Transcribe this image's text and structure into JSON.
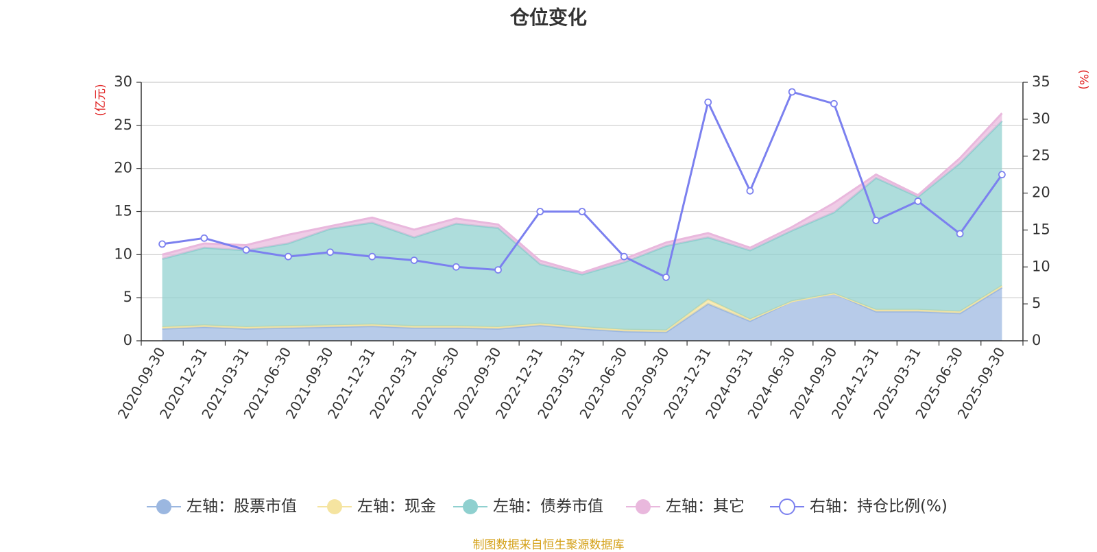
{
  "chart_data": {
    "type": "area",
    "title": "仓位变化",
    "y_left_label": "(亿元)",
    "y_right_label": "(%)",
    "y_left_lim": [
      0,
      30
    ],
    "y_right_lim": [
      0,
      35
    ],
    "y_left_ticks": [
      "0",
      "5",
      "10",
      "15",
      "20",
      "25",
      "30"
    ],
    "y_right_ticks": [
      "0",
      "5",
      "10",
      "15",
      "20",
      "25",
      "30",
      "35"
    ],
    "categories": [
      "2020-09-30",
      "2020-12-31",
      "2021-03-31",
      "2021-06-30",
      "2021-09-30",
      "2021-12-31",
      "2022-03-31",
      "2022-06-30",
      "2022-09-30",
      "2022-12-31",
      "2023-03-31",
      "2023-06-30",
      "2023-09-30",
      "2023-12-31",
      "2024-03-31",
      "2024-06-30",
      "2024-09-30",
      "2024-12-31",
      "2025-03-31",
      "2025-06-30",
      "2025-09-30"
    ],
    "stacked_series": [
      {
        "name": "左轴：股票市值",
        "color": "#9bb7e0",
        "values": [
          1.4,
          1.6,
          1.4,
          1.5,
          1.6,
          1.7,
          1.5,
          1.5,
          1.4,
          1.8,
          1.4,
          1.1,
          1.0,
          4.3,
          2.3,
          4.6,
          5.5,
          3.4,
          3.4,
          3.2,
          6.2
        ]
      },
      {
        "name": "左轴：现金",
        "color": "#f5e4a0",
        "values": [
          0.2,
          0.2,
          0.2,
          0.2,
          0.2,
          0.2,
          0.2,
          0.2,
          0.2,
          0.2,
          0.2,
          0.2,
          0.2,
          0.5,
          0.2,
          0.0,
          0.0,
          0.2,
          0.2,
          0.2,
          0.2
        ]
      },
      {
        "name": "左轴：债券市值",
        "color": "#8fd0cf",
        "values": [
          7.9,
          9.0,
          8.9,
          9.6,
          11.2,
          11.8,
          10.3,
          11.9,
          11.5,
          6.9,
          6.1,
          7.8,
          9.8,
          7.2,
          8.0,
          8.2,
          9.4,
          15.3,
          13.1,
          17.2,
          19.1
        ]
      },
      {
        "name": "左轴：其它",
        "color": "#e9b8dd",
        "values": [
          0.5,
          0.5,
          0.6,
          1.0,
          0.3,
          0.6,
          0.9,
          0.6,
          0.4,
          0.4,
          0.2,
          0.4,
          0.4,
          0.5,
          0.3,
          0.4,
          1.1,
          0.4,
          0.2,
          0.6,
          0.9
        ]
      }
    ],
    "line_series": {
      "name": "右轴：持仓比例(%)",
      "color": "#7b80ef",
      "values": [
        13.1,
        13.9,
        12.3,
        11.4,
        12.0,
        11.4,
        10.9,
        10.0,
        9.6,
        17.5,
        17.5,
        11.4,
        8.6,
        32.3,
        20.3,
        33.7,
        32.1,
        16.3,
        18.9,
        14.5,
        22.5
      ]
    },
    "legend_position": "bottom-center",
    "grid": "horizontal"
  },
  "source_note": "制图数据来自恒生聚源数据库"
}
